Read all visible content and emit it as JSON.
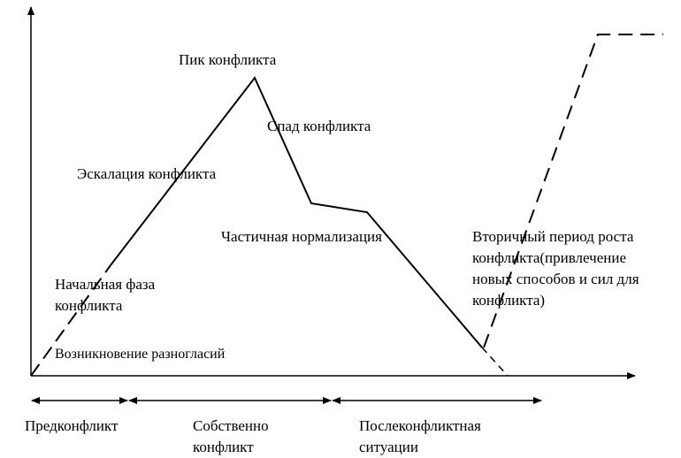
{
  "labels": {
    "peak": "Пик конфликта",
    "decline": "Спад конфликта",
    "escalation": "Эскалация конфликта",
    "partial_normalization": "Частичная нормализация",
    "secondary_growth": [
      "Вторичный период роста",
      "конфликта(привлечение",
      "новых способов и сил для",
      "конфликта)"
    ],
    "initial_phase": [
      "Начальная фаза",
      "конфликта"
    ],
    "disagreement": "Возникновение разногласий"
  },
  "periods": [
    {
      "lines": [
        "Предконфликт"
      ]
    },
    {
      "lines": [
        "Собственно",
        "конфликт"
      ]
    },
    {
      "lines": [
        "Послеконфликтная",
        "ситуации"
      ]
    }
  ],
  "line_color": "#000000"
}
